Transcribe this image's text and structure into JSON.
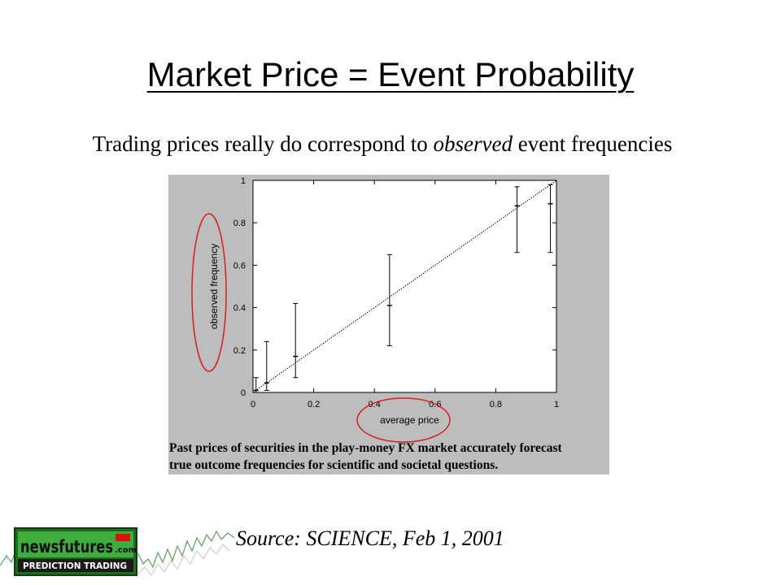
{
  "slide": {
    "title": "Market Price = Event Probability",
    "subtitle_pre": "Trading prices really do correspond to ",
    "subtitle_em": "observed",
    "subtitle_post": " event frequencies",
    "caption_line1_a": "Past prices of securities in the play-money ",
    "caption_line1_b": "FX",
    "caption_line1_c": " market accurately forecast",
    "caption_line2": "true outcome frequencies for scientific and societal questions.",
    "source": "Source: SCIENCE, Feb 1, 2001"
  },
  "logo": {
    "brand": "newsfutures",
    "brand_suffix": ".com",
    "tagline": "PREDICTION TRADING",
    "colors": {
      "green": "#2e8b2e",
      "red": "#e01010",
      "dark": "#1a1a1a"
    }
  },
  "chart_data": {
    "type": "scatter",
    "xlabel": "average price",
    "ylabel": "observed frequency",
    "xlim": [
      0,
      1
    ],
    "ylim": [
      0,
      1
    ],
    "xticks": [
      "0",
      "0.2",
      "0.4",
      "0.6",
      "0.8",
      "1"
    ],
    "yticks": [
      "0",
      "0.2",
      "0.4",
      "0.6",
      "0.8",
      "1"
    ],
    "grid": false,
    "reference_line": {
      "style": "dotted",
      "from": [
        0,
        0
      ],
      "to": [
        1,
        1
      ]
    },
    "points": [
      {
        "x": 0.01,
        "y": 0.01,
        "low": 0.0,
        "high": 0.07
      },
      {
        "x": 0.045,
        "y": 0.045,
        "low": 0.01,
        "high": 0.24
      },
      {
        "x": 0.14,
        "y": 0.17,
        "low": 0.07,
        "high": 0.42
      },
      {
        "x": 0.45,
        "y": 0.41,
        "low": 0.22,
        "high": 0.65
      },
      {
        "x": 0.87,
        "y": 0.88,
        "low": 0.66,
        "high": 0.97
      },
      {
        "x": 0.98,
        "y": 0.89,
        "low": 0.66,
        "high": 0.98
      }
    ],
    "highlights": [
      "ylabel",
      "xlabel"
    ],
    "colors": {
      "panel": "#bdbdbd",
      "plot": "#ffffff",
      "highlight": "#d42020"
    }
  }
}
